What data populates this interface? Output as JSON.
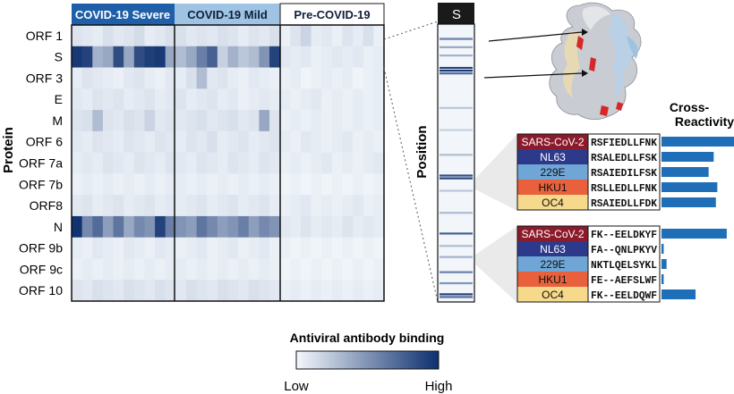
{
  "heatmap": {
    "groups": [
      "COVID-19 Severe",
      "COVID-19 Mild",
      "Pre-COVID-19"
    ],
    "group_header_colors": [
      "#1f5ea8",
      "#9fc3e2",
      "#ffffff"
    ],
    "group_header_text_colors": [
      "#ffffff",
      "#0f1f3a",
      "#0f1f3a"
    ],
    "y_axis_title": "Protein",
    "proteins": [
      "ORF 1",
      "S",
      "ORF 3",
      "E",
      "M",
      "ORF 6",
      "ORF 7a",
      "ORF 7b",
      "ORF8",
      "N",
      "ORF 9b",
      "ORF 9c",
      "ORF 10"
    ],
    "values": [
      [
        0.1,
        0.08,
        0.06,
        0.12,
        0.08,
        0.1,
        0.14,
        0.06,
        0.08,
        0.12,
        0.12,
        0.08,
        0.1,
        0.08,
        0.12,
        0.1,
        0.06,
        0.1,
        0.08,
        0.12,
        0.04,
        0.1,
        0.18,
        0.06,
        0.08,
        0.04,
        0.1,
        0.06,
        0.12,
        0.04
      ],
      [
        0.95,
        0.9,
        0.35,
        0.4,
        0.85,
        0.4,
        0.85,
        0.92,
        0.95,
        0.4,
        0.3,
        0.4,
        0.6,
        0.75,
        0.2,
        0.35,
        0.25,
        0.3,
        0.5,
        0.9,
        0.08,
        0.06,
        0.08,
        0.04,
        0.06,
        0.08,
        0.06,
        0.08,
        0.04,
        0.06
      ],
      [
        0.06,
        0.1,
        0.08,
        0.06,
        0.04,
        0.08,
        0.1,
        0.06,
        0.04,
        0.08,
        0.06,
        0.12,
        0.3,
        0.08,
        0.1,
        0.06,
        0.04,
        0.08,
        0.06,
        0.04,
        0.04,
        0.06,
        0.02,
        0.04,
        0.06,
        0.04,
        0.06,
        0.02,
        0.04,
        0.06
      ],
      [
        0.08,
        0.06,
        0.1,
        0.08,
        0.1,
        0.06,
        0.08,
        0.1,
        0.06,
        0.08,
        0.1,
        0.06,
        0.08,
        0.1,
        0.06,
        0.08,
        0.04,
        0.06,
        0.08,
        0.06,
        0.06,
        0.04,
        0.06,
        0.08,
        0.04,
        0.06,
        0.04,
        0.06,
        0.04,
        0.06
      ],
      [
        0.1,
        0.12,
        0.3,
        0.1,
        0.08,
        0.12,
        0.1,
        0.18,
        0.08,
        0.1,
        0.08,
        0.1,
        0.12,
        0.08,
        0.1,
        0.12,
        0.08,
        0.1,
        0.4,
        0.1,
        0.04,
        0.06,
        0.04,
        0.06,
        0.04,
        0.06,
        0.04,
        0.06,
        0.04,
        0.06
      ],
      [
        0.08,
        0.06,
        0.1,
        0.08,
        0.06,
        0.1,
        0.08,
        0.06,
        0.1,
        0.08,
        0.06,
        0.1,
        0.08,
        0.12,
        0.06,
        0.08,
        0.1,
        0.06,
        0.08,
        0.1,
        0.06,
        0.04,
        0.08,
        0.06,
        0.04,
        0.06,
        0.08,
        0.04,
        0.06,
        0.04
      ],
      [
        0.06,
        0.08,
        0.06,
        0.1,
        0.08,
        0.06,
        0.1,
        0.08,
        0.06,
        0.1,
        0.08,
        0.06,
        0.1,
        0.08,
        0.06,
        0.1,
        0.08,
        0.06,
        0.1,
        0.08,
        0.04,
        0.06,
        0.04,
        0.06,
        0.08,
        0.04,
        0.06,
        0.04,
        0.06,
        0.08
      ],
      [
        0.04,
        0.06,
        0.04,
        0.06,
        0.04,
        0.06,
        0.04,
        0.06,
        0.04,
        0.06,
        0.06,
        0.04,
        0.06,
        0.04,
        0.06,
        0.04,
        0.06,
        0.04,
        0.06,
        0.04,
        0.02,
        0.04,
        0.02,
        0.04,
        0.02,
        0.04,
        0.02,
        0.04,
        0.02,
        0.04
      ],
      [
        0.08,
        0.1,
        0.06,
        0.08,
        0.1,
        0.06,
        0.08,
        0.1,
        0.06,
        0.08,
        0.06,
        0.08,
        0.1,
        0.06,
        0.08,
        0.1,
        0.06,
        0.08,
        0.1,
        0.06,
        0.04,
        0.06,
        0.08,
        0.04,
        0.06,
        0.04,
        0.06,
        0.08,
        0.04,
        0.06
      ],
      [
        0.98,
        0.55,
        0.7,
        0.45,
        0.65,
        0.4,
        0.55,
        0.5,
        0.9,
        0.6,
        0.5,
        0.45,
        0.65,
        0.55,
        0.45,
        0.5,
        0.6,
        0.45,
        0.55,
        0.5,
        0.08,
        0.06,
        0.1,
        0.06,
        0.08,
        0.06,
        0.1,
        0.06,
        0.08,
        0.06
      ],
      [
        0.06,
        0.04,
        0.08,
        0.06,
        0.04,
        0.08,
        0.06,
        0.04,
        0.08,
        0.06,
        0.04,
        0.06,
        0.08,
        0.04,
        0.06,
        0.08,
        0.04,
        0.06,
        0.08,
        0.04,
        0.04,
        0.02,
        0.04,
        0.02,
        0.04,
        0.02,
        0.04,
        0.02,
        0.04,
        0.02
      ],
      [
        0.04,
        0.06,
        0.04,
        0.06,
        0.04,
        0.06,
        0.04,
        0.06,
        0.04,
        0.06,
        0.06,
        0.04,
        0.06,
        0.04,
        0.06,
        0.04,
        0.06,
        0.04,
        0.06,
        0.04,
        0.02,
        0.04,
        0.02,
        0.04,
        0.02,
        0.04,
        0.02,
        0.04,
        0.02,
        0.04
      ],
      [
        0.1,
        0.08,
        0.12,
        0.1,
        0.08,
        0.12,
        0.1,
        0.08,
        0.12,
        0.1,
        0.08,
        0.12,
        0.1,
        0.08,
        0.12,
        0.1,
        0.08,
        0.12,
        0.1,
        0.08,
        0.04,
        0.06,
        0.04,
        0.06,
        0.04,
        0.06,
        0.04,
        0.06,
        0.04,
        0.06
      ]
    ]
  },
  "position_panel": {
    "header": "S",
    "axis_label": "Position",
    "band_rows": [
      {
        "pos": 0.05,
        "strength": 0.6
      },
      {
        "pos": 0.08,
        "strength": 0.4
      },
      {
        "pos": 0.11,
        "strength": 0.35
      },
      {
        "pos": 0.155,
        "strength": 0.9
      },
      {
        "pos": 0.165,
        "strength": 0.95
      },
      {
        "pos": 0.175,
        "strength": 0.7
      },
      {
        "pos": 0.3,
        "strength": 0.25
      },
      {
        "pos": 0.38,
        "strength": 0.2
      },
      {
        "pos": 0.47,
        "strength": 0.3
      },
      {
        "pos": 0.545,
        "strength": 0.85
      },
      {
        "pos": 0.555,
        "strength": 0.9
      },
      {
        "pos": 0.6,
        "strength": 0.25
      },
      {
        "pos": 0.68,
        "strength": 0.3
      },
      {
        "pos": 0.755,
        "strength": 0.75
      },
      {
        "pos": 0.8,
        "strength": 0.3
      },
      {
        "pos": 0.84,
        "strength": 0.35
      },
      {
        "pos": 0.895,
        "strength": 0.6
      },
      {
        "pos": 0.935,
        "strength": 0.5
      },
      {
        "pos": 0.975,
        "strength": 0.9
      },
      {
        "pos": 0.985,
        "strength": 0.7
      }
    ]
  },
  "legend": {
    "title": "Antiviral antibody binding",
    "low_label": "Low",
    "high_label": "High",
    "gradient_start": "#f4f8fc",
    "gradient_end": "#0d2f6e"
  },
  "cross_reactivity": {
    "title_line1": "Cross-",
    "title_line2": "Reactivity",
    "bar_color": "#1f6fb8",
    "tables": [
      {
        "rows": [
          {
            "virus": "SARS-CoV-2",
            "color": "#8b1a2b",
            "text_color": "#ffffff",
            "sequence": "RSFIEDLLFNK",
            "value": 1.0
          },
          {
            "virus": "NL63",
            "color": "#2d3a8c",
            "text_color": "#ffffff",
            "sequence": "RSALEDLLFSK",
            "value": 0.72
          },
          {
            "virus": "229E",
            "color": "#6fa6d6",
            "text_color": "#111111",
            "sequence": "RSAIEDILFSK",
            "value": 0.65
          },
          {
            "virus": "HKU1",
            "color": "#e8603c",
            "text_color": "#111111",
            "sequence": "RSLLEDLLFNK",
            "value": 0.77
          },
          {
            "virus": "OC4",
            "color": "#f7d98b",
            "text_color": "#111111",
            "sequence": "RSAIEDLLFDK",
            "value": 0.75
          }
        ]
      },
      {
        "rows": [
          {
            "virus": "SARS-CoV-2",
            "color": "#8b1a2b",
            "text_color": "#ffffff",
            "sequence": "FK--EELDKYF",
            "value": 0.9
          },
          {
            "virus": "NL63",
            "color": "#2d3a8c",
            "text_color": "#ffffff",
            "sequence": "FA--QNLPKYV",
            "value": 0.03
          },
          {
            "virus": "229E",
            "color": "#6fa6d6",
            "text_color": "#111111",
            "sequence": "NKTLQELSYKL",
            "value": 0.07
          },
          {
            "virus": "HKU1",
            "color": "#e8603c",
            "text_color": "#111111",
            "sequence": "FE--AEFSLWF",
            "value": 0.03
          },
          {
            "virus": "OC4",
            "color": "#f7d98b",
            "text_color": "#111111",
            "sequence": "FK--EELDQWF",
            "value": 0.47
          }
        ]
      }
    ]
  }
}
